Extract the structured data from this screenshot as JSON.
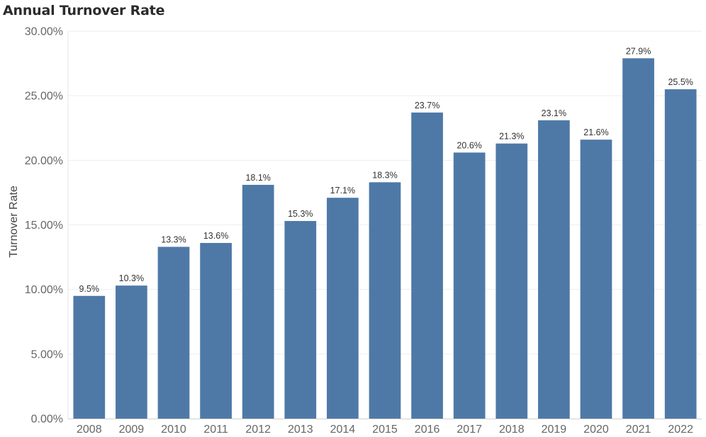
{
  "chart_data": {
    "type": "bar",
    "title": "Annual Turnover Rate",
    "xlabel": "",
    "ylabel": "Turnover Rate",
    "categories": [
      "2008",
      "2009",
      "2010",
      "2011",
      "2012",
      "2013",
      "2014",
      "2015",
      "2016",
      "2017",
      "2018",
      "2019",
      "2020",
      "2021",
      "2022"
    ],
    "values": [
      9.5,
      10.3,
      13.3,
      13.6,
      18.1,
      15.3,
      17.1,
      18.3,
      23.7,
      20.6,
      21.3,
      23.1,
      21.6,
      27.9,
      25.5
    ],
    "value_labels": [
      "9.5%",
      "10.3%",
      "13.3%",
      "13.6%",
      "18.1%",
      "15.3%",
      "17.1%",
      "18.3%",
      "23.7%",
      "20.6%",
      "21.3%",
      "23.1%",
      "21.6%",
      "27.9%",
      "25.5%"
    ],
    "ylim": [
      0,
      30
    ],
    "yticks": [
      0,
      5,
      10,
      15,
      20,
      25,
      30
    ],
    "ytick_labels": [
      "0.00%",
      "5.00%",
      "10.00%",
      "15.00%",
      "20.00%",
      "25.00%",
      "30.00%"
    ],
    "grid": true,
    "legend": "none",
    "colors": {
      "bar": "#4e79a7",
      "grid": "#eeeeee",
      "axis": "#d0d0d0"
    }
  }
}
